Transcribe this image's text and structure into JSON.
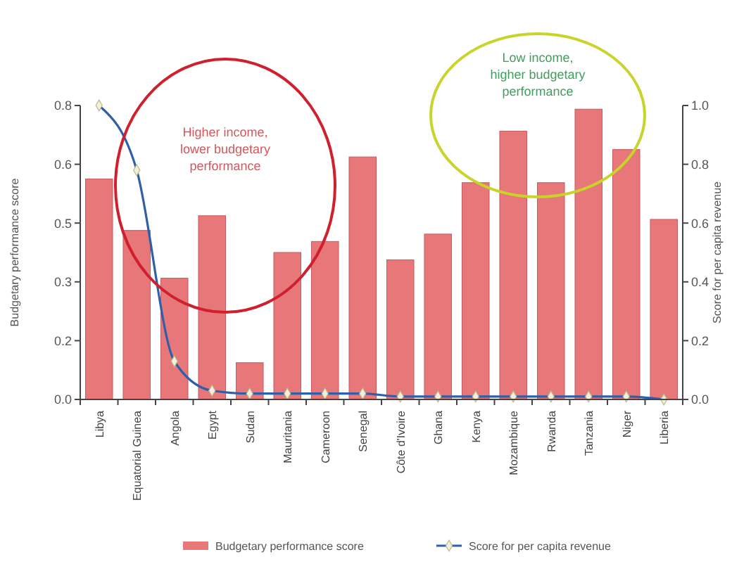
{
  "chart_data": {
    "type": "bar",
    "ylabel": "Budgetary performance score",
    "y2label": "Score for per capita revenue",
    "categories": [
      "Libya",
      "Equatorial Guinea",
      "Angola",
      "Egypt",
      "Sudan",
      "Mauritania",
      "Cameroon",
      "Senegal",
      "Côte d'Ivoire",
      "Ghana",
      "Kenya",
      "Mozambique",
      "Rwanda",
      "Tanzania",
      "Niger",
      "Liberia"
    ],
    "series": [
      {
        "name": "Budgetary performance score",
        "color": "#e8777a",
        "values": [
          0.6,
          0.46,
          0.33,
          0.5,
          0.1,
          0.4,
          0.43,
          0.66,
          0.38,
          0.45,
          0.59,
          0.73,
          0.59,
          0.79,
          0.68,
          0.49
        ]
      },
      {
        "name": "Score for per capita revenue",
        "color": "#2f5fa8",
        "type": "line",
        "axis": "y2",
        "marker": "diamond",
        "values": [
          1.0,
          0.78,
          0.13,
          0.03,
          0.02,
          0.02,
          0.02,
          0.02,
          0.01,
          0.01,
          0.01,
          0.01,
          0.01,
          0.01,
          0.01,
          0.0
        ]
      }
    ],
    "ylim": [
      0,
      0.8
    ],
    "yticks": [
      {
        "value": 0,
        "label": "0.0"
      },
      {
        "value": 0.16,
        "label": "0.2"
      },
      {
        "value": 0.32,
        "label": "0.3"
      },
      {
        "value": 0.48,
        "label": "0.5"
      },
      {
        "value": 0.64,
        "label": "0.6"
      },
      {
        "value": 0.8,
        "label": "0.8"
      }
    ],
    "y2lim": [
      0,
      1
    ],
    "y2ticks": [
      {
        "value": 0,
        "label": "0.0"
      },
      {
        "value": 0.2,
        "label": "0.2"
      },
      {
        "value": 0.4,
        "label": "0.4"
      },
      {
        "value": 0.6,
        "label": "0.6"
      },
      {
        "value": 0.8,
        "label": "0.8"
      },
      {
        "value": 1,
        "label": "1.0"
      }
    ],
    "legend": "bottom",
    "grid": false,
    "annotations": [
      "Higher income, lower budgetary performance",
      "Low income, higher budgetary performance"
    ]
  }
}
